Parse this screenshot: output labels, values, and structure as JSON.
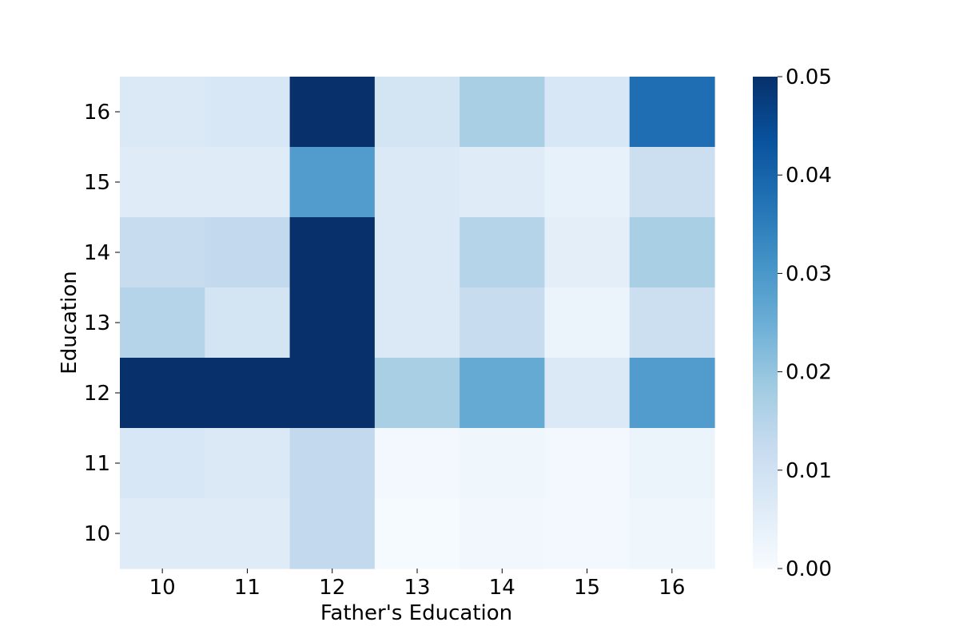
{
  "chart_data": {
    "type": "heatmap",
    "title": "",
    "xlabel": "Father's Education",
    "ylabel": "Education",
    "x_categories": [
      "10",
      "11",
      "12",
      "13",
      "14",
      "15",
      "16"
    ],
    "y_categories": [
      "16",
      "15",
      "14",
      "13",
      "12",
      "11",
      "10"
    ],
    "values": [
      [
        0.007,
        0.008,
        0.05,
        0.009,
        0.017,
        0.008,
        0.038
      ],
      [
        0.006,
        0.006,
        0.029,
        0.007,
        0.006,
        0.004,
        0.011
      ],
      [
        0.012,
        0.013,
        0.05,
        0.007,
        0.015,
        0.005,
        0.017
      ],
      [
        0.015,
        0.009,
        0.05,
        0.007,
        0.012,
        0.003,
        0.011
      ],
      [
        0.05,
        0.05,
        0.05,
        0.017,
        0.026,
        0.007,
        0.029
      ],
      [
        0.008,
        0.007,
        0.013,
        0.001,
        0.002,
        0.001,
        0.003
      ],
      [
        0.006,
        0.006,
        0.013,
        0.0005,
        0.0015,
        0.001,
        0.002
      ]
    ],
    "colorscale": "Blues",
    "vmin": 0.0,
    "vmax": 0.05,
    "colorbar_ticks": [
      "0.00",
      "0.01",
      "0.02",
      "0.03",
      "0.04",
      "0.05"
    ],
    "grid": false,
    "legend": "colorbar-right"
  }
}
